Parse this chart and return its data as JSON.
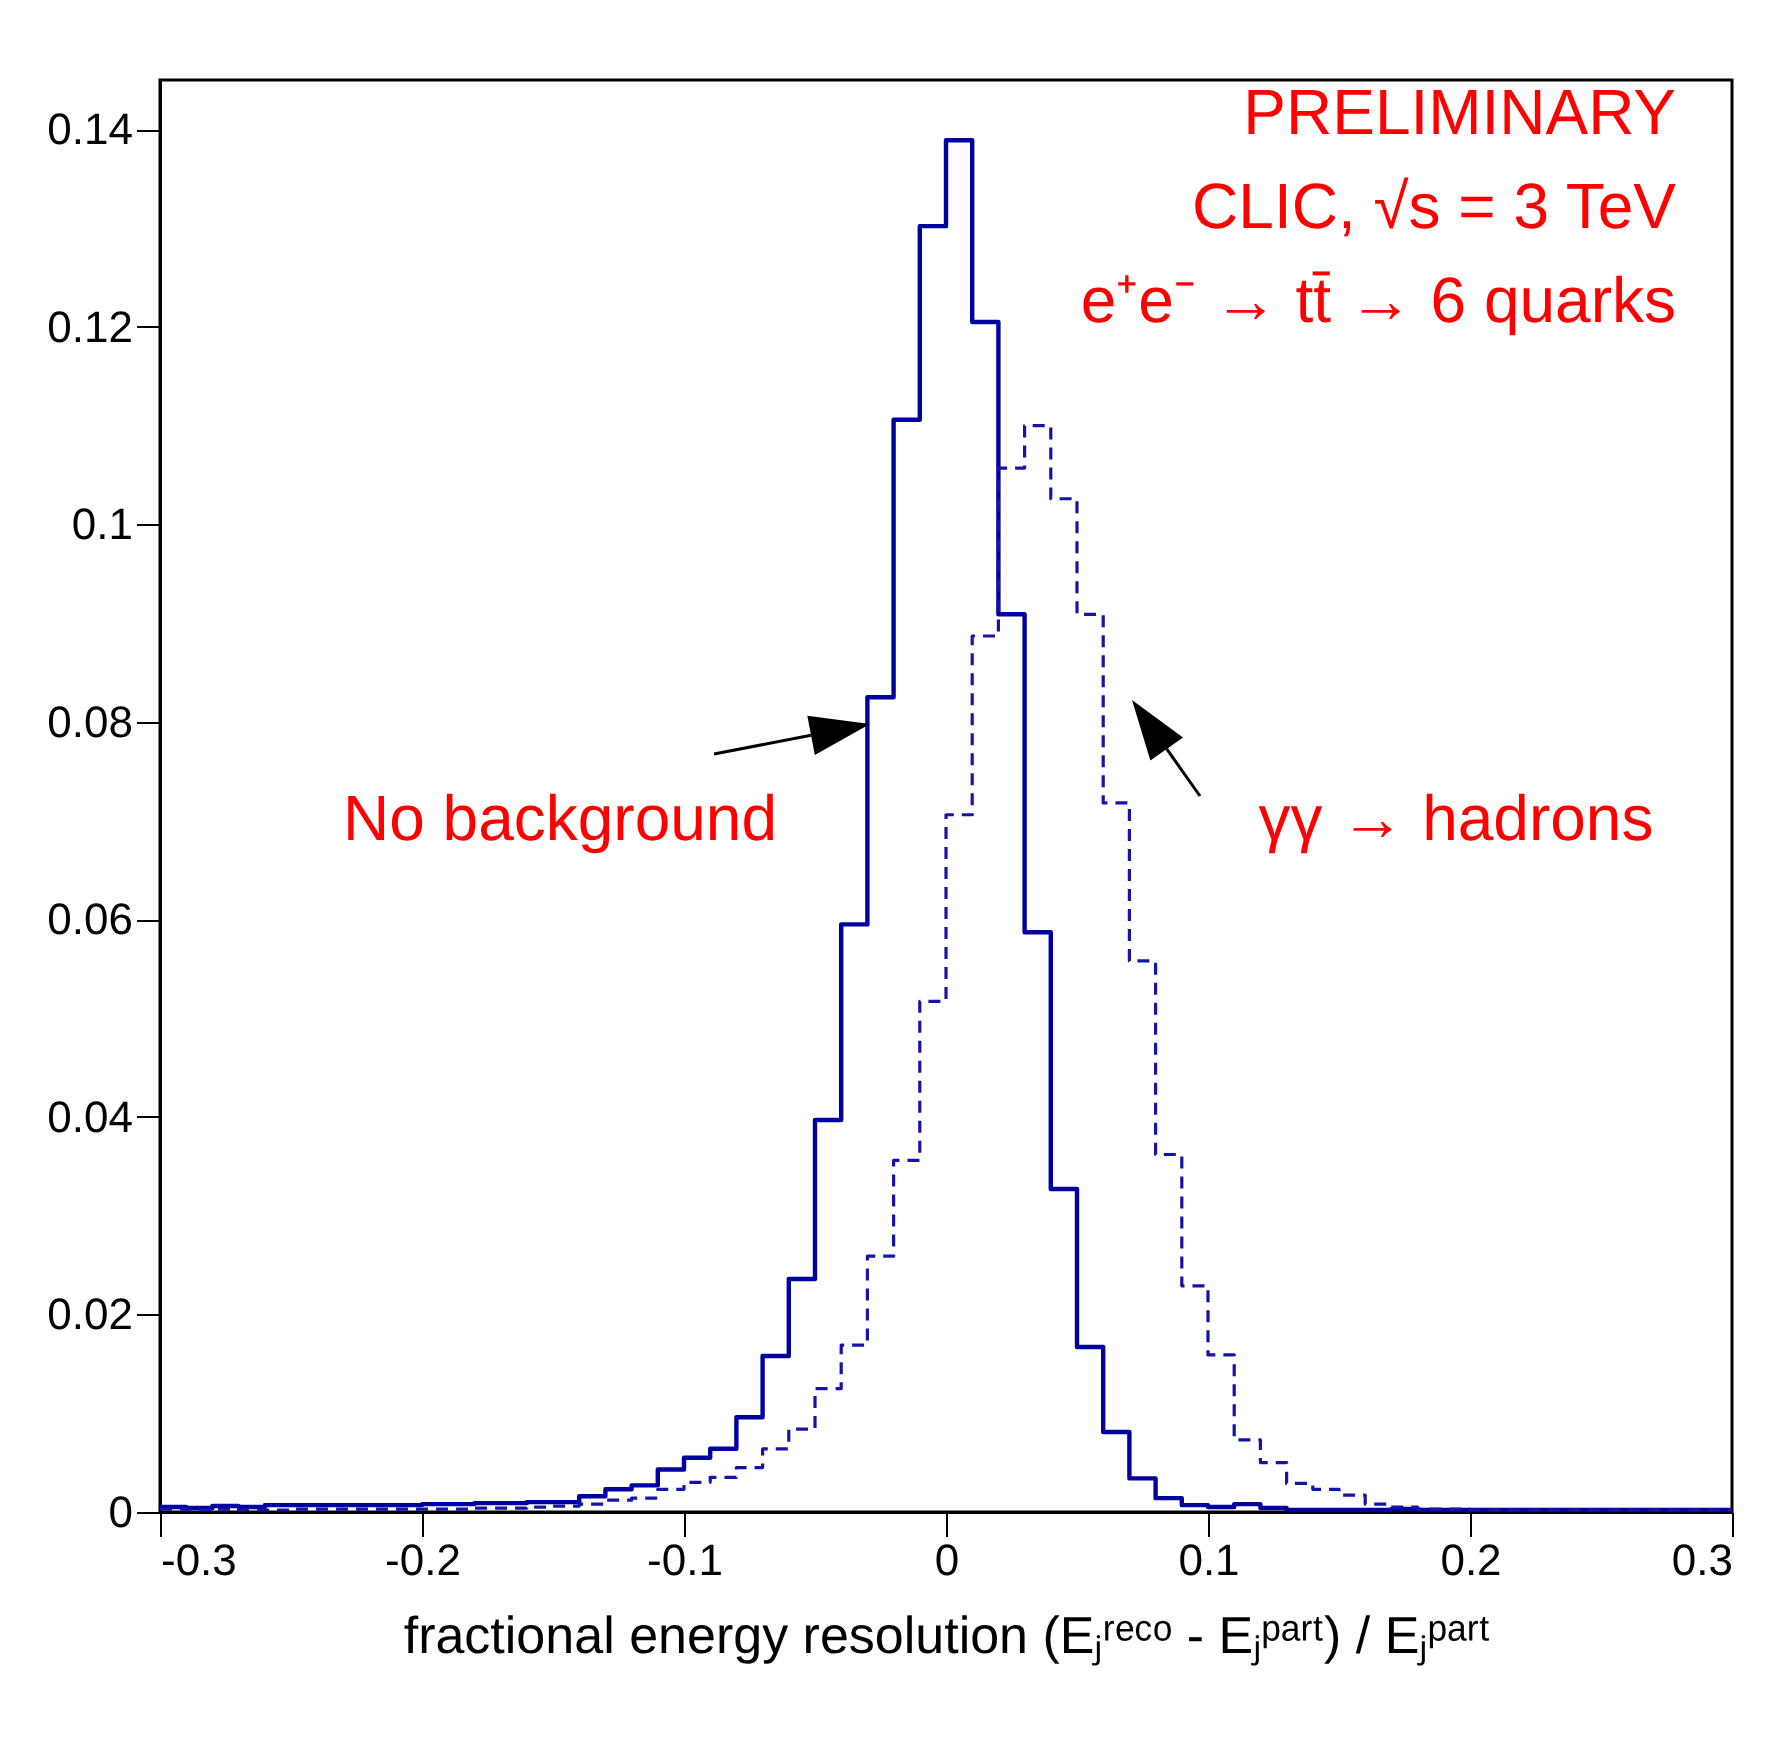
{
  "chart_data": {
    "type": "histogram",
    "xlabel": "fractional energy resolution (Eⱼʳᵉᶜᵒ - Eⱼᵖᵃʳᵗ) / Eⱼᵖᵃʳᵗ",
    "bins": [
      -0.3,
      -0.29,
      -0.28,
      -0.27,
      -0.26,
      -0.25,
      -0.24,
      -0.23,
      -0.22,
      -0.21,
      -0.2,
      -0.19,
      -0.18,
      -0.17,
      -0.16,
      -0.15,
      -0.14,
      -0.13,
      -0.12,
      -0.11,
      -0.1,
      -0.09,
      -0.08,
      -0.07,
      -0.06,
      -0.05,
      -0.04,
      -0.03,
      -0.02,
      -0.01,
      0,
      0.01,
      0.02,
      0.03,
      0.04,
      0.05,
      0.06,
      0.07,
      0.08,
      0.09,
      0.1,
      0.11,
      0.12,
      0.13,
      0.14,
      0.15,
      0.16,
      0.17,
      0.18,
      0.19,
      0.2,
      0.21,
      0.22,
      0.23,
      0.24,
      0.25,
      0.26,
      0.27,
      0.28,
      0.29,
      0.3
    ],
    "series": [
      {
        "color": "#0000a0",
        "line_style": "solid",
        "values": [
          0.0005,
          0.0004,
          0.0006,
          0.0005,
          0.0007,
          0.0007,
          0.0007,
          0.0007,
          0.0007,
          0.0007,
          0.0008,
          0.0008,
          0.0009,
          0.0009,
          0.001,
          0.001,
          0.0016,
          0.0023,
          0.0027,
          0.0043,
          0.0055,
          0.0064,
          0.0096,
          0.0158,
          0.0236,
          0.0397,
          0.0595,
          0.0825,
          0.1106,
          0.1302,
          0.1389,
          0.1205,
          0.0909,
          0.0587,
          0.0327,
          0.0167,
          0.0081,
          0.0034,
          0.0014,
          0.0007,
          0.0005,
          0.0008,
          0.0004,
          0.0002,
          0.0002,
          0.0002,
          0.0002,
          0.0003,
          0.0002,
          0.0002,
          0.0002,
          0.0002,
          0.0002,
          0.0002,
          0.0002,
          0.0002,
          0.0002,
          0.0002,
          0.0002,
          0.0002
        ]
      },
      {
        "color": "#1414a8",
        "line_style": "dashed",
        "values": [
          0.0003,
          0.0002,
          0.0003,
          0.0002,
          0.0002,
          0.0003,
          0.0003,
          0.0003,
          0.0003,
          0.0003,
          0.0003,
          0.0003,
          0.0004,
          0.0004,
          0.0005,
          0.0006,
          0.0008,
          0.0012,
          0.0014,
          0.0023,
          0.003,
          0.0035,
          0.0045,
          0.0064,
          0.0084,
          0.0125,
          0.0169,
          0.0259,
          0.0356,
          0.0517,
          0.0706,
          0.0887,
          0.1057,
          0.11,
          0.1026,
          0.0909,
          0.0718,
          0.0558,
          0.0362,
          0.0229,
          0.0159,
          0.0073,
          0.005,
          0.0029,
          0.0023,
          0.0017,
          0.0008,
          0.0005,
          0.0003,
          0.0003,
          0.0002,
          0.0002,
          0.0002,
          0.0002,
          0.0002,
          0.0002,
          0.0002,
          0.0002,
          0.0002,
          0.0002
        ]
      }
    ],
    "xlim": [
      -0.3,
      0.3
    ],
    "xticks": [
      -0.3,
      -0.2,
      -0.1,
      0,
      0.1,
      0.2,
      0.3
    ],
    "ylim": [
      0,
      0.145
    ],
    "yticks": [
      0,
      0.02,
      0.04,
      0.06,
      0.08,
      0.1,
      0.12,
      0.14
    ],
    "annotations": [
      "PRELIMINARY",
      "CLIC, √s = 3 TeV",
      "e⁺e⁻ → tt̄ → 6 quarks",
      "No background",
      "γγ → hadrons"
    ]
  }
}
